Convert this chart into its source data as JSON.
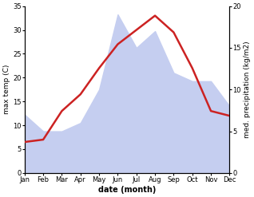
{
  "months": [
    "Jan",
    "Feb",
    "Mar",
    "Apr",
    "May",
    "Jun",
    "Jul",
    "Aug",
    "Sep",
    "Oct",
    "Nov",
    "Dec"
  ],
  "temperature": [
    6.5,
    7.0,
    13.0,
    16.5,
    22.0,
    27.0,
    30.0,
    33.0,
    29.5,
    22.0,
    13.0,
    12.0
  ],
  "precipitation": [
    7,
    5,
    5,
    6,
    10,
    19,
    15,
    17,
    12,
    11,
    11,
    8
  ],
  "temp_color": "#cc2222",
  "precip_fill_color": "#c5cef0",
  "temp_ylim": [
    0,
    35
  ],
  "right_ylim": [
    0,
    20
  ],
  "xlabel": "date (month)",
  "ylabel_left": "max temp (C)",
  "ylabel_right": "med. precipitation (kg/m2)",
  "bg_color": "#ffffff",
  "temp_linewidth": 1.8,
  "fig_width": 3.18,
  "fig_height": 2.47,
  "dpi": 100
}
